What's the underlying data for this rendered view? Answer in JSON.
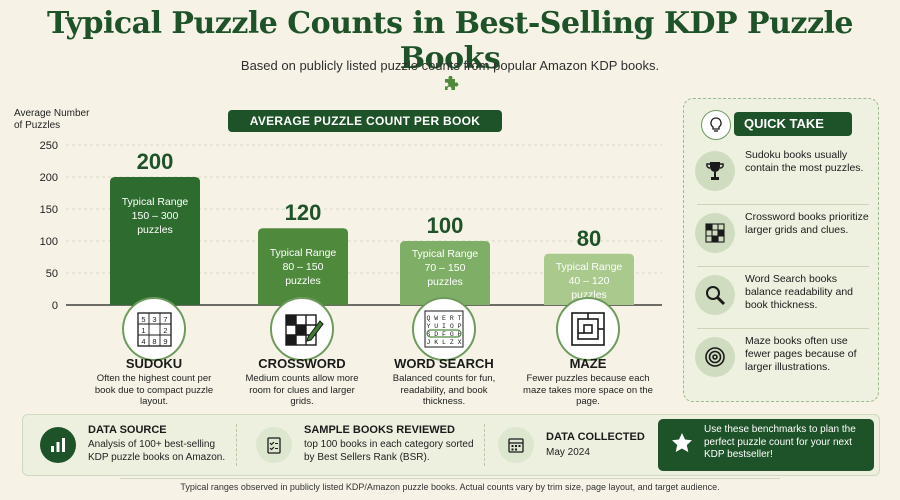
{
  "header": {
    "title": "Typical Puzzle Counts in Best-Selling KDP Puzzle Books",
    "subtitle": "Based on publicly listed puzzle counts from popular Amazon KDP books."
  },
  "chart_data": {
    "type": "bar",
    "title": "AVERAGE PUZZLE COUNT PER BOOK",
    "ylabel": "Average Number of Puzzles",
    "ylim": [
      0,
      250
    ],
    "yticks": [
      0,
      50,
      100,
      150,
      200,
      250
    ],
    "grid": true,
    "categories": [
      "SUDOKU",
      "CROSSWORD",
      "WORD SEARCH",
      "MAZE"
    ],
    "values": [
      200,
      120,
      100,
      80
    ],
    "value_labels": [
      "200",
      "120",
      "100",
      "80"
    ],
    "range_labels": [
      [
        "Typical Range",
        "150 – 300",
        "puzzles"
      ],
      [
        "Typical Range",
        "80 – 150",
        "puzzles"
      ],
      [
        "Typical Range",
        "70 – 150",
        "puzzles"
      ],
      [
        "Typical Range",
        "40 – 120",
        "puzzles"
      ]
    ],
    "descriptions": [
      "Often the highest count per book due to compact puzzle layout.",
      "Medium counts allow more room for clues and larger grids.",
      "Balanced counts for fun, readability, and book thickness.",
      "Fewer puzzles because each maze takes more space on the page."
    ],
    "colors": [
      "#2e6b2f",
      "#4f8a3c",
      "#7faf66",
      "#a9c98d"
    ]
  },
  "icons": {
    "sudoku_grid": [
      "5",
      "3",
      "7",
      "1",
      "",
      "2",
      "4",
      "8",
      "9"
    ],
    "word_search_rows": [
      "Q W E R T",
      "Y U I O P",
      "S D F G H",
      "J K L Z X"
    ],
    "puzzle_piece": "puzzle-piece-icon"
  },
  "quick_take": {
    "title": "QUICK TAKE",
    "items": [
      {
        "icon": "trophy-icon",
        "text": "Sudoku books usually contain the most puzzles."
      },
      {
        "icon": "crossword-grid-icon",
        "text": "Crossword books prioritize larger grids and clues."
      },
      {
        "icon": "magnifier-icon",
        "text": "Word Search books balance readability and book thickness."
      },
      {
        "icon": "spiral-maze-icon",
        "text": "Maze books often use fewer pages because of larger illustrations."
      }
    ]
  },
  "info_bar": {
    "data_source_title": "DATA SOURCE",
    "data_source_text": "Analysis of 100+ best-selling KDP puzzle books on Amazon.",
    "sample_title": "SAMPLE BOOKS REVIEWED",
    "sample_text": "top 100 books in each category sorted by Best Sellers Rank (BSR).",
    "collected_title": "DATA COLLECTED",
    "collected_text": "May 2024",
    "cta_text": "Use these benchmarks to plan the perfect puzzle count for your next KDP bestseller!"
  },
  "footnote": "Typical ranges observed in publicly listed KDP/Amazon puzzle books. Actual counts vary by trim size, page layout, and target audience.",
  "colors": {
    "dark_green": "#1e5228",
    "background": "#f6f3e6",
    "panel": "#eef1e0"
  }
}
